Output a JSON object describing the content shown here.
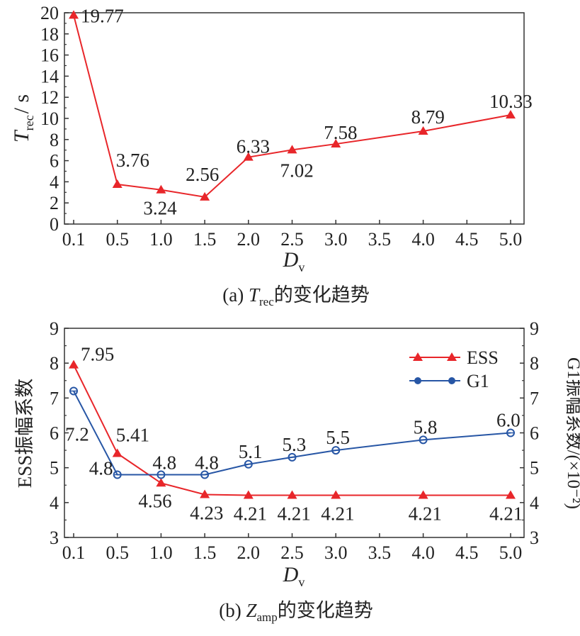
{
  "chart_data": [
    {
      "type": "line",
      "ylabel_main": "T",
      "ylabel_sub": "rec",
      "ylabel_unit": "/ s",
      "xlabel_main": "D",
      "xlabel_sub": "v",
      "caption": {
        "prefix": "(a) ",
        "var": "T",
        "sub": "rec",
        "suffix": "的变化趋势"
      },
      "x": [
        0.1,
        0.5,
        1.0,
        1.5,
        2.0,
        2.5,
        3.0,
        4.0,
        5.0
      ],
      "x_ticks": [
        "0.1",
        "0.5",
        "1.0",
        "1.5",
        "2.0",
        "2.5",
        "3.0",
        "3.5",
        "4.0",
        "4.5",
        "5.0"
      ],
      "y_ticks": [
        "0",
        "2",
        "4",
        "6",
        "8",
        "10",
        "12",
        "14",
        "16",
        "18",
        "20"
      ],
      "ylim": [
        0,
        20
      ],
      "series": [
        {
          "color": "#e8262a",
          "marker": "triangle",
          "values": [
            19.77,
            3.76,
            3.24,
            2.56,
            6.33,
            7.02,
            7.58,
            8.79,
            10.33
          ],
          "labels": [
            "19.77",
            "3.76",
            "3.24",
            "2.56",
            "6.33",
            "7.02",
            "7.58",
            "8.79",
            "10.33"
          ]
        }
      ],
      "grid": false
    },
    {
      "type": "line",
      "ylabel_left": "ESS振幅系数",
      "ylabel_right": "G1振幅系数/(×10⁻²)",
      "xlabel_main": "D",
      "xlabel_sub": "v",
      "caption": {
        "prefix": "(b) ",
        "var": "Z",
        "sub": "amp",
        "suffix": "的变化趋势"
      },
      "x": [
        0.1,
        0.5,
        1.0,
        1.5,
        2.0,
        2.5,
        3.0,
        4.0,
        5.0
      ],
      "x_ticks": [
        "0.1",
        "0.5",
        "1.0",
        "1.5",
        "2.0",
        "2.5",
        "3.0",
        "3.5",
        "4.0",
        "4.5",
        "5.0"
      ],
      "y_ticks_left": [
        "3",
        "4",
        "5",
        "6",
        "7",
        "8",
        "9"
      ],
      "y_ticks_right": [
        "3",
        "4",
        "5",
        "6",
        "7",
        "8",
        "9"
      ],
      "ylim": [
        3,
        9
      ],
      "legend_position": "top-right",
      "series": [
        {
          "name": "ESS",
          "color": "#e8262a",
          "marker": "triangle",
          "values": [
            7.95,
            5.41,
            4.56,
            4.23,
            4.21,
            4.21,
            4.21,
            4.21,
            4.21
          ],
          "labels": [
            "7.95",
            "5.41",
            "4.56",
            "4.23",
            "4.21",
            "4.21",
            "4.21",
            "4.21",
            "4.21"
          ]
        },
        {
          "name": "G1",
          "color": "#2756a5",
          "marker": "circle",
          "values": [
            7.2,
            4.8,
            4.8,
            4.8,
            5.1,
            5.3,
            5.5,
            5.8,
            6.0
          ],
          "labels": [
            "7.2",
            "4.8",
            "4.8",
            "4.8",
            "5.1",
            "5.3",
            "5.5",
            "5.8",
            "6.0"
          ]
        }
      ],
      "grid": false
    }
  ]
}
